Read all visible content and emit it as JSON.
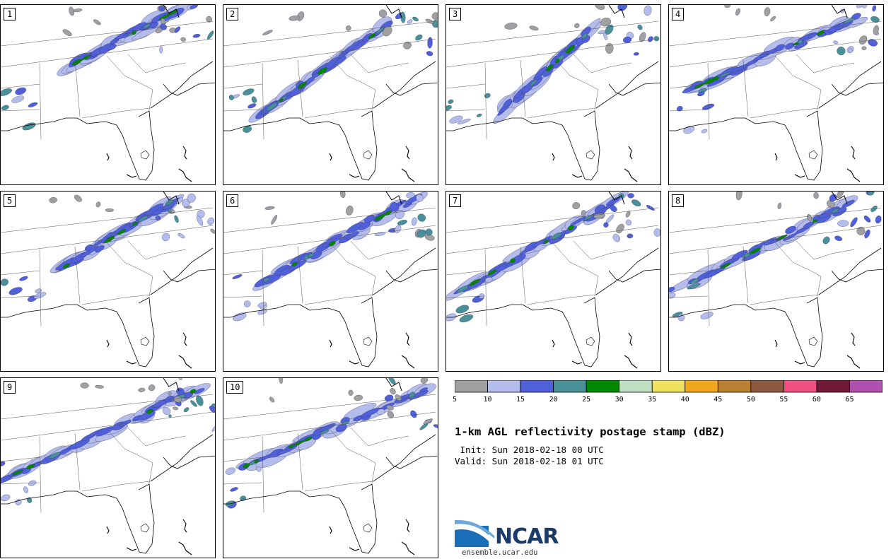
{
  "panels": [
    {
      "label": "1"
    },
    {
      "label": "2"
    },
    {
      "label": "3"
    },
    {
      "label": "4"
    },
    {
      "label": "5"
    },
    {
      "label": "6"
    },
    {
      "label": "7"
    },
    {
      "label": "8"
    },
    {
      "label": "9"
    },
    {
      "label": "10"
    }
  ],
  "colorbar": {
    "colors": [
      "#a0a0a0",
      "#b4bcec",
      "#5060d8",
      "#4a9098",
      "#008800",
      "#bfe0c0",
      "#f0e060",
      "#f0a820",
      "#b88030",
      "#8c5840",
      "#f05080",
      "#701838",
      "#b050b0"
    ],
    "tick_labels": [
      "5",
      "10",
      "15",
      "20",
      "25",
      "30",
      "35",
      "40",
      "45",
      "50",
      "55",
      "60",
      "65"
    ]
  },
  "title": "1-km AGL reflectivity postage stamp (dBZ)",
  "init": " Init: Sun 2018-02-18 00 UTC",
  "valid": "Valid: Sun 2018-02-18 01 UTC",
  "logo": {
    "text": "NCAR",
    "url": "ensemble.ucar.edu"
  }
}
